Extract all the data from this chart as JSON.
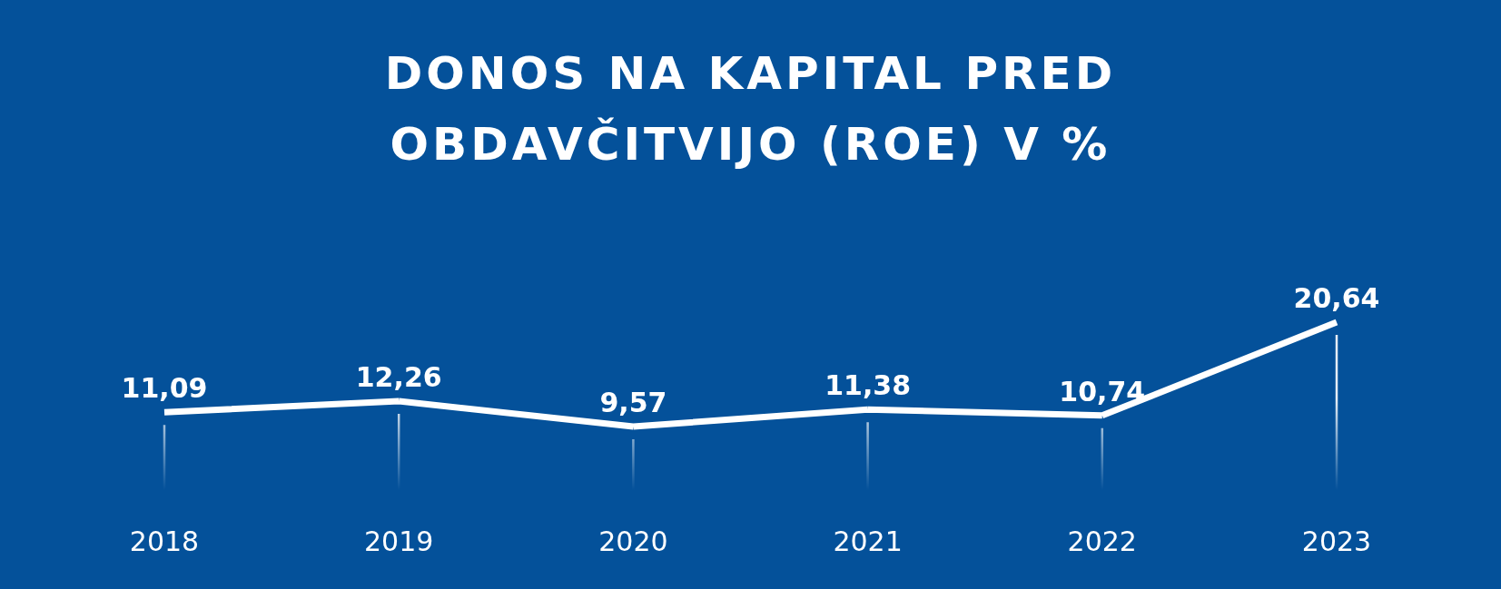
{
  "chart_data": {
    "type": "line",
    "title": "DONOS NA KAPITAL PRED OBDAVČITVIJO (ROE) V %",
    "categories": [
      "2018",
      "2019",
      "2020",
      "2021",
      "2022",
      "2023"
    ],
    "series": [
      {
        "color": "#ffffff",
        "values": [
          11.09,
          12.26,
          9.57,
          11.38,
          10.74,
          20.64
        ],
        "value_labels": [
          "11,09",
          "12,26",
          "9,57",
          "11,38",
          "10,74",
          "20,64"
        ]
      }
    ],
    "marker": "none"
  }
}
